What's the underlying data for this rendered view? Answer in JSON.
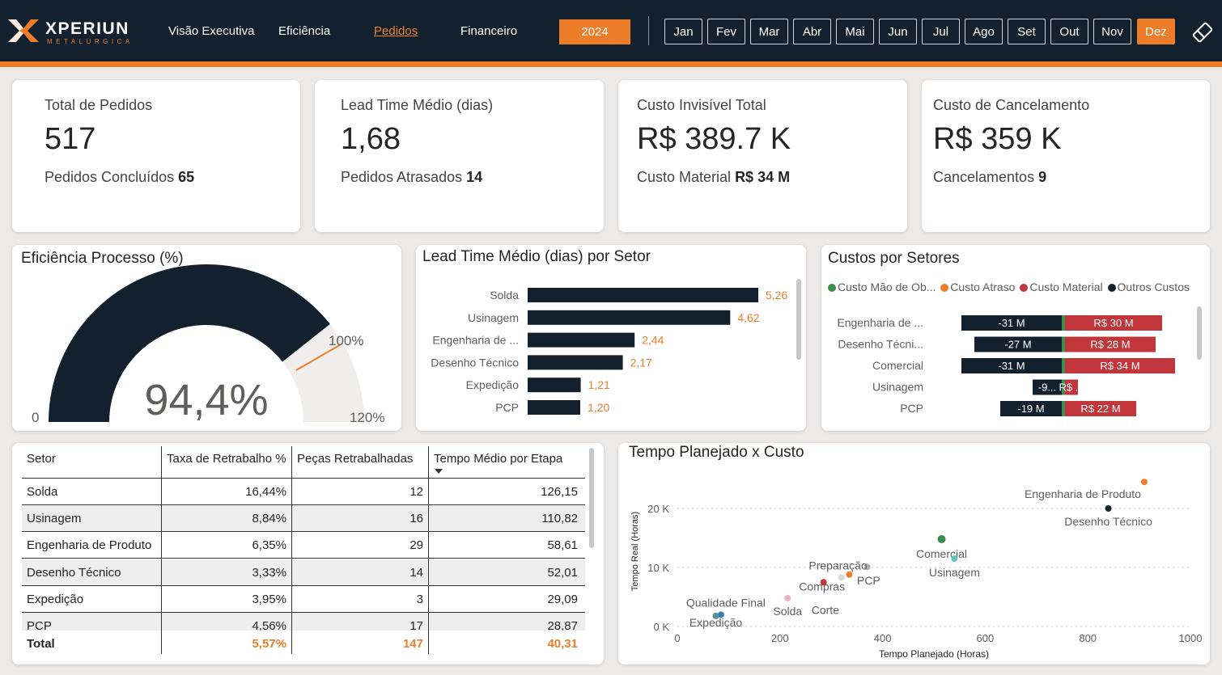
{
  "header": {
    "brand": "XPERIUN",
    "brand_sub": "METALÚRGICA",
    "nav": [
      "Visão Executiva",
      "Eficiência",
      "Pedidos",
      "Financeiro"
    ],
    "active_nav": "Pedidos",
    "year": "2024",
    "months": [
      "Jan",
      "Fev",
      "Mar",
      "Abr",
      "Mai",
      "Jun",
      "Jul",
      "Ago",
      "Set",
      "Out",
      "Nov",
      "Dez"
    ],
    "active_month": "Dez",
    "accent_color": "#ee7d2a",
    "navy_color": "#13202e"
  },
  "kpis": [
    {
      "title": "Total de Pedidos",
      "value": "517",
      "sub_label": "Pedidos Concluídos",
      "sub_value": "65"
    },
    {
      "title": "Lead Time Médio (dias)",
      "value": "1,68",
      "sub_label": "Pedidos Atrasados",
      "sub_value": "14"
    },
    {
      "title": "Custo Invisível Total",
      "value": "R$ 389.7 K",
      "sub_label": "Custo Material",
      "sub_value": "R$ 34 M"
    },
    {
      "title": "Custo de Cancelamento",
      "value": "R$ 359 K",
      "sub_label": "Cancelamentos",
      "sub_value": "9"
    }
  ],
  "gauge": {
    "title": "Eficiência Processo (%)",
    "value_label": "94,4%",
    "value": 94.4,
    "min": 0,
    "max": 120,
    "target": 100,
    "min_label": "0",
    "max_label": "120%",
    "target_label": "100%"
  },
  "lead_time_chart": {
    "title": "Lead Time Médio (dias) por Setor",
    "chart_data": {
      "type": "bar",
      "orientation": "horizontal",
      "categories": [
        "Solda",
        "Usinagem",
        "Engenharia de ...",
        "Desenho Técnico",
        "Expedição",
        "PCP"
      ],
      "values": [
        5.26,
        4.62,
        2.44,
        2.17,
        1.21,
        1.2
      ],
      "value_labels": [
        "5,26",
        "4,62",
        "2,44",
        "2,17",
        "1,21",
        "1,20"
      ]
    }
  },
  "costs_chart": {
    "title": "Custos por Setores",
    "legend": [
      {
        "name": "Custo Mão de Ob...",
        "color": "#3f8c4f"
      },
      {
        "name": "Custo Atraso",
        "color": "#ee7d2a"
      },
      {
        "name": "Custo Material",
        "color": "#c0363a"
      },
      {
        "name": "Outros Custos",
        "color": "#13202e"
      }
    ],
    "chart_data": {
      "type": "bar",
      "orientation": "horizontal-diverging",
      "categories": [
        "Engenharia de ...",
        "Desenho Técni...",
        "Comercial",
        "Usinagem",
        "PCP"
      ],
      "series": [
        {
          "name": "Outros Custos",
          "values": [
            -31,
            -27,
            -31,
            -9,
            -19
          ],
          "labels": [
            "-31 M",
            "-27 M",
            "-31 M",
            "-9...",
            "-19 M"
          ]
        },
        {
          "name": "Custo Material",
          "values": [
            30,
            28,
            34,
            4,
            22
          ],
          "labels": [
            "R$ 30 M",
            "R$ 28 M",
            "R$ 34 M",
            "R$ ...",
            "R$ 22 M"
          ]
        }
      ]
    }
  },
  "table": {
    "columns": [
      "Setor",
      "Taxa de Retrabalho %",
      "Peças Retrabalhadas",
      "Tempo Médio por Etapa"
    ],
    "rows": [
      [
        "Solda",
        "16,44%",
        "12",
        "126,15"
      ],
      [
        "Usinagem",
        "8,84%",
        "16",
        "110,82"
      ],
      [
        "Engenharia de Produto",
        "6,35%",
        "29",
        "58,61"
      ],
      [
        "Desenho Técnico",
        "3,33%",
        "14",
        "52,01"
      ],
      [
        "Expedição",
        "3,95%",
        "3",
        "29,09"
      ],
      [
        "PCP",
        "4,56%",
        "17",
        "28,87"
      ]
    ],
    "total": [
      "Total",
      "5,57%",
      "147",
      "40,31"
    ]
  },
  "scatter": {
    "title": "Tempo Planejado x Custo",
    "chart_data": {
      "type": "scatter",
      "xlabel": "Tempo Planejado (Horas)",
      "ylabel": "Tempo Real (Horas)",
      "xlim": [
        0,
        1000
      ],
      "ylim": [
        0,
        20000
      ],
      "x_ticks": [
        "0",
        "200",
        "400",
        "600",
        "800",
        "1000"
      ],
      "y_ticks": [
        "0 K",
        "10 K",
        "20 K"
      ],
      "points": [
        {
          "label": "Engenharia de Produto",
          "x": 910,
          "y": 24500,
          "color": "#ee7d2a"
        },
        {
          "label": "Desenho Técnico",
          "x": 840,
          "y": 20000,
          "color": "#13202e"
        },
        {
          "label": "Comercial",
          "x": 515,
          "y": 14800,
          "color": "#3f8c4f"
        },
        {
          "label": "Usinagem",
          "x": 540,
          "y": 11500,
          "color": "#5fc7c0"
        },
        {
          "label": "Preparação",
          "x": 370,
          "y": 10100,
          "color": "#b0b0b0"
        },
        {
          "label": "PCP",
          "x": 335,
          "y": 8800,
          "color": "#ee7d2a"
        },
        {
          "label": "Compras",
          "x": 285,
          "y": 7500,
          "color": "#c0363a"
        },
        {
          "label": "Corte",
          "x": 320,
          "y": 8300,
          "color": "#d8d8d8"
        },
        {
          "label": "Solda",
          "x": 215,
          "y": 4800,
          "color": "#e8b4bf"
        },
        {
          "label": "Qualidade Final",
          "x": 85,
          "y": 2000,
          "color": "#3a7ab8"
        },
        {
          "label": "Expedição",
          "x": 75,
          "y": 1800,
          "color": "#5a8f9a"
        }
      ]
    }
  }
}
